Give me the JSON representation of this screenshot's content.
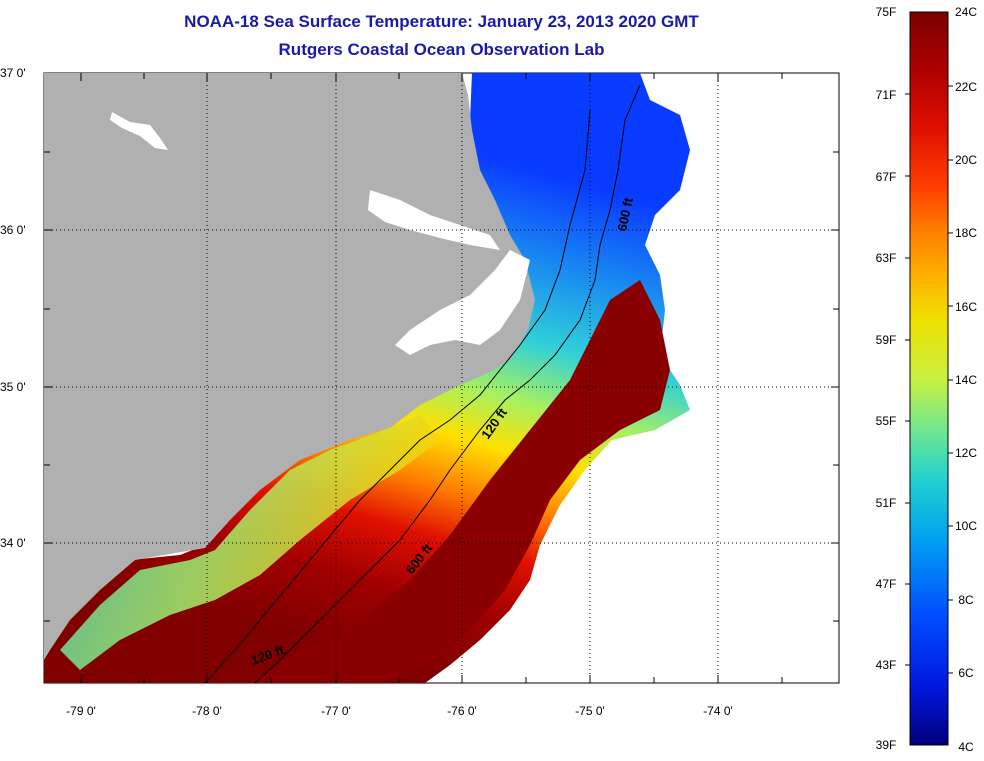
{
  "title": {
    "line1": "NOAA-18 Sea Surface Temperature:  January 23, 2013 2020 GMT",
    "line2": "Rutgers Coastal Ocean Observation Lab"
  },
  "colors": {
    "title": "#1a1aa8",
    "land": "#b0b0b0",
    "no_data": "#ffffff",
    "contour": "#000000"
  },
  "latitude_labels": [
    "37 0'",
    "36 0'",
    "35 0'",
    "34 0'"
  ],
  "longitude_labels": [
    "-79 0'",
    "-78 0'",
    "-77 0'",
    "-76 0'",
    "-75 0'",
    "-74 0'"
  ],
  "isobath_labels": [
    {
      "id": "isobath-600-north",
      "text": "600 ft"
    },
    {
      "id": "isobath-600-south",
      "text": "600 ft"
    },
    {
      "id": "isobath-120-north",
      "text": "120 ft"
    },
    {
      "id": "isobath-120-south",
      "text": "120 ft"
    }
  ],
  "colorbar": {
    "fahrenheit_labels": [
      "75F",
      "71F",
      "67F",
      "63F",
      "59F",
      "55F",
      "51F",
      "47F",
      "43F",
      "39F"
    ],
    "celsius_labels": [
      "24C",
      "22C",
      "20C",
      "18C",
      "16C",
      "14C",
      "12C",
      "10C",
      "8C",
      "6C",
      "4C"
    ],
    "gradient_colors_top_to_bottom": [
      "#7a0000",
      "#b00000",
      "#e01000",
      "#ff4000",
      "#ff8000",
      "#ffb000",
      "#f0e000",
      "#c8f040",
      "#70e890",
      "#20d0d0",
      "#00a0f0",
      "#0050ff",
      "#0018e0",
      "#00007a"
    ]
  }
}
